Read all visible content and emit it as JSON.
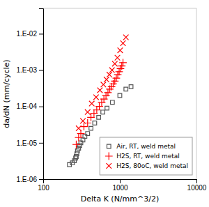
{
  "chart_data": {
    "type": "scatter",
    "x_label": "Delta K (N/mm^3/2)",
    "y_label": "da/dN (mm/cycle)",
    "log": true,
    "grid": false,
    "legend": "lower right",
    "xlim": [
      100,
      10000
    ],
    "ylim": [
      1e-06,
      0.05
    ],
    "xticks": [
      100,
      1000,
      10000
    ],
    "yticks": [
      {
        "value": 1e-06,
        "label": "1.E-06"
      },
      {
        "value": 1e-05,
        "label": "1.E-05"
      },
      {
        "value": 0.0001,
        "label": "1.E-04"
      },
      {
        "value": 0.001,
        "label": "1.E-03"
      },
      {
        "value": 0.01,
        "label": "1.E-02"
      }
    ],
    "series": [
      {
        "name": "Air, RT, weld metal",
        "color": "#555555",
        "marker": "square",
        "x": [
          220,
          240,
          255,
          265,
          270,
          275,
          280,
          290,
          300,
          310,
          330,
          350,
          380,
          420,
          470,
          530,
          600,
          680,
          800,
          1000,
          1200,
          1400
        ],
        "values": [
          2.5e-06,
          2.8e-06,
          3.2e-06,
          3.8e-06,
          4.2e-06,
          5e-06,
          6e-06,
          7e-06,
          8.5e-06,
          1e-05,
          1.2e-05,
          1.5e-05,
          1.8e-05,
          2.5e-05,
          3.5e-05,
          5e-05,
          7e-05,
          9e-05,
          0.00013,
          0.0002,
          0.0003,
          0.00035
        ]
      },
      {
        "name": "H2S, RT, weld metal",
        "color": "#ff0000",
        "marker": "plus",
        "x": [
          270,
          290,
          310,
          340,
          380,
          420,
          460,
          500,
          540,
          580,
          620,
          660,
          700,
          740,
          780,
          820,
          860,
          900,
          940,
          980,
          1020,
          1060,
          1100
        ],
        "values": [
          9e-06,
          1.4e-05,
          1.8e-05,
          2.8e-05,
          3.5e-05,
          5e-05,
          6.5e-05,
          8e-05,
          0.0001,
          0.00013,
          0.00016,
          0.0002,
          0.00024,
          0.0003,
          0.00035,
          0.00042,
          0.0005,
          0.0006,
          0.00075,
          0.0009,
          0.0011,
          0.0013,
          0.0016
        ]
      },
      {
        "name": "H2S, 80oC, weld metal",
        "color": "#ff0000",
        "marker": "x",
        "x": [
          290,
          330,
          380,
          430,
          490,
          550,
          610,
          670,
          730,
          790,
          860,
          930,
          1010,
          1100,
          1200
        ],
        "values": [
          2.5e-05,
          4e-05,
          7e-05,
          0.00012,
          0.00018,
          0.00028,
          0.0004,
          0.00055,
          0.00075,
          0.001,
          0.0015,
          0.0022,
          0.0035,
          0.0055,
          0.008
        ]
      }
    ]
  }
}
